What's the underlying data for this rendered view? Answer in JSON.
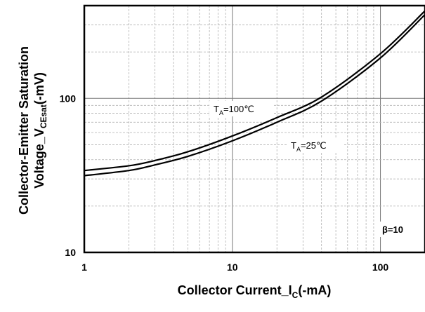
{
  "chart_data": {
    "type": "line",
    "x_scale": "log",
    "y_scale": "log",
    "xlim": [
      1,
      200
    ],
    "ylim": [
      10,
      400
    ],
    "grid": true,
    "x_ticks": [
      {
        "value": 1,
        "label": "1"
      },
      {
        "value": 10,
        "label": "10"
      },
      {
        "value": 100,
        "label": "100"
      }
    ],
    "y_ticks": [
      {
        "value": 10,
        "label": "10"
      },
      {
        "value": 100,
        "label": "100"
      }
    ],
    "xlabel": {
      "main": "Collector Current_I",
      "sub": "C",
      "tail": "(-mA)"
    },
    "ylabel": {
      "line1": "Collector-Emitter Saturation",
      "line2_main": "Voltage_V",
      "line2_sub": "CEsat",
      "line2_tail": "(-mV)"
    },
    "series": [
      {
        "name": {
          "main": "T",
          "sub": "A",
          "tail": "=100℃"
        },
        "x": [
          1,
          2,
          3,
          5,
          10,
          20,
          40,
          100,
          200
        ],
        "y": [
          34,
          36.5,
          39.5,
          45,
          57,
          75,
          102,
          195,
          370
        ]
      },
      {
        "name": {
          "main": "T",
          "sub": "A",
          "tail": "=25℃"
        },
        "x": [
          1,
          2,
          3,
          5,
          10,
          20,
          40,
          100,
          200
        ],
        "y": [
          31.5,
          34,
          37,
          42,
          53,
          70,
          96,
          183,
          350
        ]
      }
    ],
    "annotations": [
      {
        "text": "β=10"
      }
    ]
  }
}
